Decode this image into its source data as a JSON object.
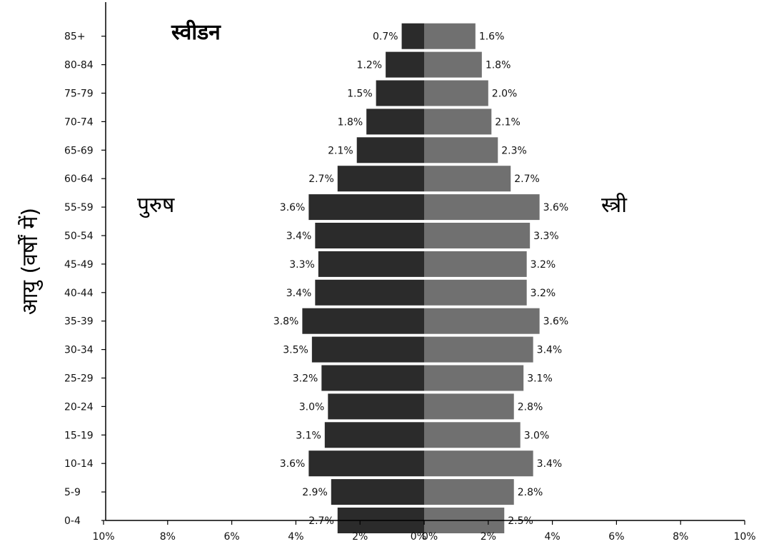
{
  "chart_data": {
    "type": "bar",
    "orientation": "horizontal",
    "title": "स्वीडन",
    "ylabel": "आयु (वर्षों में)",
    "categories": [
      "0-4",
      "5-9",
      "10-14",
      "15-19",
      "20-24",
      "25-29",
      "30-34",
      "35-39",
      "40-44",
      "45-49",
      "50-54",
      "55-59",
      "60-64",
      "65-69",
      "70-74",
      "75-79",
      "80-84",
      "85+"
    ],
    "series": [
      {
        "name": "पुरुष",
        "color": "#2b2b2b",
        "values": [
          2.7,
          2.9,
          3.6,
          3.1,
          3.0,
          3.2,
          3.5,
          3.8,
          3.4,
          3.3,
          3.4,
          3.6,
          2.7,
          2.1,
          1.8,
          1.5,
          1.2,
          0.7
        ],
        "labels": [
          "2.7%",
          "2.9%",
          "3.6%",
          "3.1%",
          "3.0%",
          "3.2%",
          "3.5%",
          "3.8%",
          "3.4%",
          "3.3%",
          "3.4%",
          "3.6%",
          "2.7%",
          "2.1%",
          "1.8%",
          "1.5%",
          "1.2%",
          "0.7%"
        ]
      },
      {
        "name": "स्त्री",
        "color": "#707070",
        "values": [
          2.5,
          2.8,
          3.4,
          3.0,
          2.8,
          3.1,
          3.4,
          3.6,
          3.2,
          3.2,
          3.3,
          3.6,
          2.7,
          2.3,
          2.1,
          2.0,
          1.8,
          1.6
        ],
        "labels": [
          "2.5%",
          "2.8%",
          "3.4%",
          "3.0%",
          "2.8%",
          "3.1%",
          "3.4%",
          "3.6%",
          "3.2%",
          "3.2%",
          "3.3%",
          "3.6%",
          "2.7%",
          "2.3%",
          "2.1%",
          "2.0%",
          "1.8%",
          "1.6%"
        ]
      }
    ],
    "xlim": [
      -10,
      10
    ],
    "xticks": [
      "10%",
      "8%",
      "6%",
      "4%",
      "2%",
      "0%",
      "0%",
      "2%",
      "4%",
      "6%",
      "8%",
      "10%"
    ],
    "grid": false,
    "legend": "none"
  }
}
